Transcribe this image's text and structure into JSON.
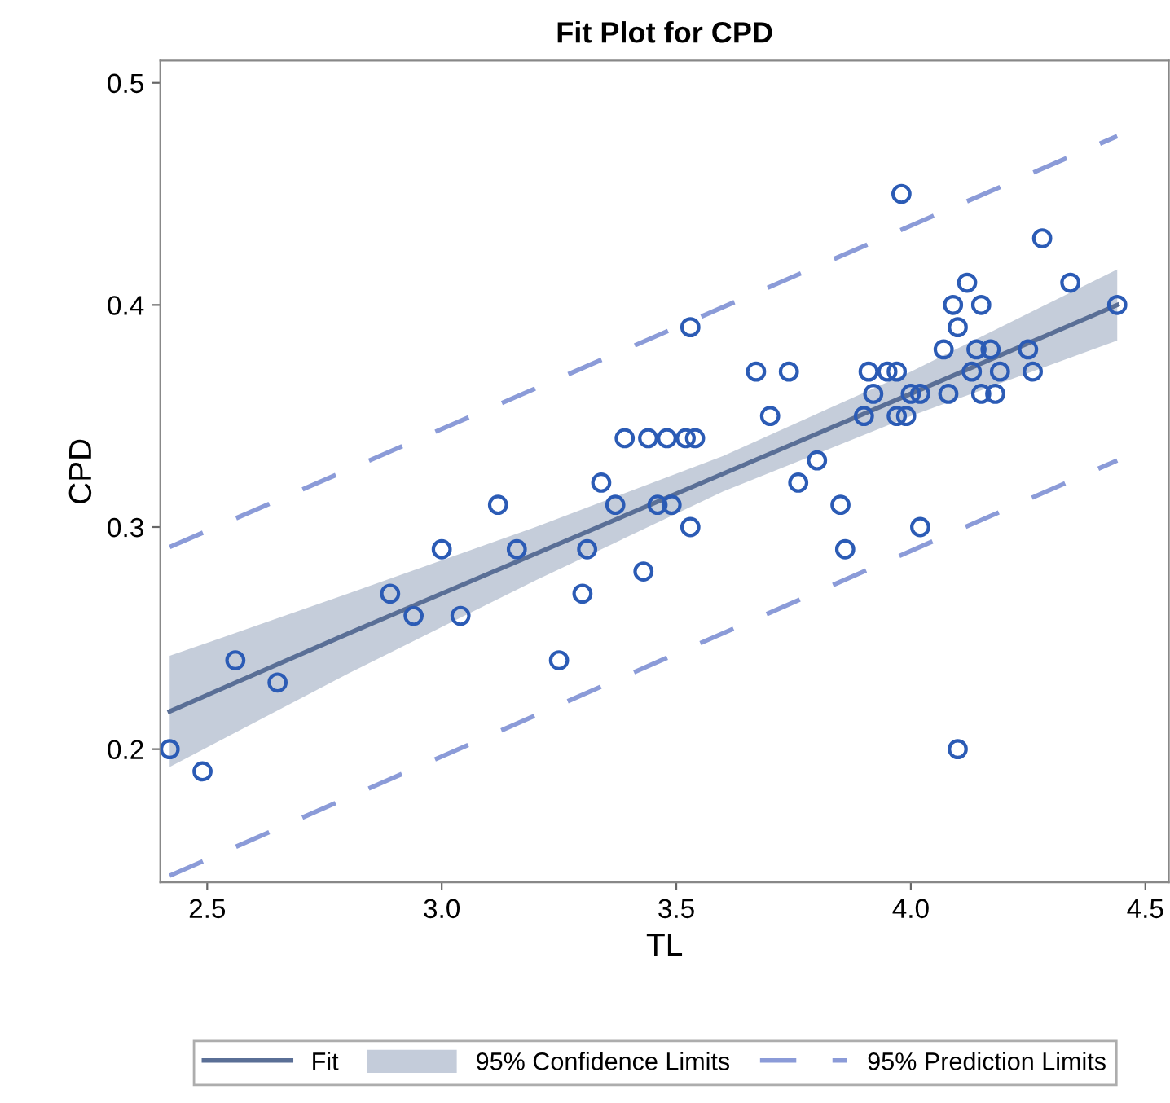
{
  "chart_data": {
    "type": "scatter",
    "title": "Fit Plot for CPD",
    "xlabel": "TL",
    "ylabel": "CPD",
    "xlim": [
      2.4,
      4.55
    ],
    "ylim": [
      0.14,
      0.51
    ],
    "xticks": [
      {
        "value": 2.5,
        "label": "2.5"
      },
      {
        "value": 3.0,
        "label": "3.0"
      },
      {
        "value": 3.5,
        "label": "3.5"
      },
      {
        "value": 4.0,
        "label": "4.0"
      },
      {
        "value": 4.5,
        "label": "4.5"
      }
    ],
    "yticks": [
      0.2,
      0.3,
      0.4,
      0.5
    ],
    "grid": false,
    "legend": "bottom",
    "annotations": [
      "95% Confidence Limits"
    ],
    "series": [
      {
        "type": "line",
        "name": "Fit",
        "color": "#5a6f96",
        "line_style": "solid",
        "x": [
          2.42,
          2.8,
          3.2,
          3.6,
          4.0,
          4.44
        ],
        "values": [
          0.217,
          0.252,
          0.288,
          0.324,
          0.36,
          0.4
        ],
        "lower": [
          0.192,
          0.234,
          0.276,
          0.316,
          0.35,
          0.384
        ],
        "upper": [
          0.242,
          0.27,
          0.3,
          0.332,
          0.37,
          0.416
        ]
      },
      {
        "type": "line",
        "name": "95% Prediction Limits",
        "color": "#8b9bd8",
        "line_style": "dashed",
        "x": [
          2.42,
          4.44
        ],
        "values": [
          0.291,
          0.476
        ]
      },
      {
        "type": "line",
        "color": "#8b9bd8",
        "line_style": "dashed",
        "x": [
          2.42,
          4.44
        ],
        "values": [
          0.143,
          0.33
        ]
      },
      {
        "type": "scatter",
        "color": "#2b5bb5",
        "marker": "circle",
        "x": [
          2.42,
          2.49,
          2.56,
          2.65,
          2.89,
          2.94,
          3.0,
          3.04,
          3.12,
          3.16,
          3.25,
          3.3,
          3.31,
          3.34,
          3.37,
          3.39,
          3.43,
          3.44,
          3.46,
          3.48,
          3.49,
          3.52,
          3.53,
          3.53,
          3.54,
          3.67,
          3.7,
          3.74,
          3.76,
          3.8,
          3.85,
          3.86,
          3.9,
          3.91,
          3.92,
          3.95,
          3.97,
          3.97,
          3.98,
          3.99,
          4.0,
          4.02,
          4.02,
          4.07,
          4.08,
          4.09,
          4.1,
          4.1,
          4.12,
          4.13,
          4.14,
          4.15,
          4.15,
          4.17,
          4.18,
          4.19,
          4.25,
          4.26,
          4.28,
          4.34,
          4.44
        ],
        "values": [
          0.2,
          0.19,
          0.24,
          0.23,
          0.27,
          0.26,
          0.29,
          0.26,
          0.31,
          0.29,
          0.24,
          0.27,
          0.29,
          0.32,
          0.31,
          0.34,
          0.28,
          0.34,
          0.31,
          0.34,
          0.31,
          0.34,
          0.39,
          0.3,
          0.34,
          0.37,
          0.35,
          0.37,
          0.32,
          0.33,
          0.31,
          0.29,
          0.35,
          0.37,
          0.36,
          0.37,
          0.37,
          0.35,
          0.45,
          0.35,
          0.36,
          0.36,
          0.3,
          0.38,
          0.36,
          0.4,
          0.39,
          0.2,
          0.41,
          0.37,
          0.38,
          0.4,
          0.36,
          0.38,
          0.36,
          0.37,
          0.38,
          0.37,
          0.43,
          0.41,
          0.4
        ]
      }
    ]
  }
}
